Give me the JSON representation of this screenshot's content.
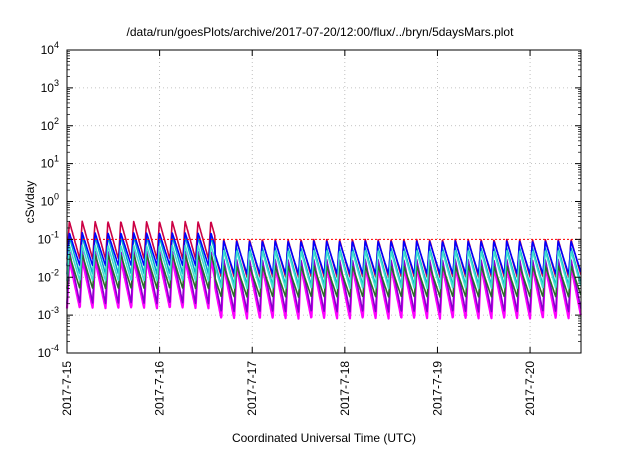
{
  "chart_data": {
    "type": "line",
    "title": "/data/run/goesPlots/archive/2017-07-20/12:00/flux/../bryn/5daysMars.plot",
    "xlabel": "Coordinated Universal Time (UTC)",
    "ylabel": "cSv/day",
    "x_ticks": [
      "2017-7-15",
      "2017-7-16",
      "2017-7-17",
      "2017-7-18",
      "2017-7-19",
      "2017-7-20"
    ],
    "x_range_days": [
      0,
      5.55
    ],
    "y_scale": "log",
    "y_exponent_range": [
      -4,
      4
    ],
    "y_ticks": [
      {
        "base": "10",
        "exp": "4"
      },
      {
        "base": "10",
        "exp": "3"
      },
      {
        "base": "10",
        "exp": "2"
      },
      {
        "base": "10",
        "exp": "1"
      },
      {
        "base": "10",
        "exp": "0"
      },
      {
        "base": "10",
        "exp": "-1"
      },
      {
        "base": "10",
        "exp": "-2"
      },
      {
        "base": "10",
        "exp": "-3"
      },
      {
        "base": "10",
        "exp": "-4"
      }
    ],
    "grid": true,
    "reference_line": {
      "value": 0.1,
      "color": "#ff0000"
    },
    "pattern": {
      "period_days": 0.1389,
      "early_until_day": 1.6,
      "note_colors_are_series": true
    },
    "series": [
      {
        "color": "#ff00ff",
        "peak_early": 0.03,
        "trough_early": 0.0015,
        "peak_late": 0.02,
        "trough_late": 0.0008
      },
      {
        "color": "#cc0044",
        "peak_early": 0.3,
        "trough_early": 0.03,
        "peak_late": 0.1,
        "trough_late": 0.01
      },
      {
        "color": "#8800cc",
        "peak_early": 0.05,
        "trough_early": 0.002,
        "peak_late": 0.03,
        "trough_late": 0.0012
      },
      {
        "color": "#00aacc",
        "peak_early": 0.12,
        "trough_early": 0.012,
        "peak_late": 0.06,
        "trough_late": 0.006
      },
      {
        "color": "#2a6e2a",
        "peak_early": 0.04,
        "trough_early": 0.005,
        "peak_late": 0.02,
        "trough_late": 0.003
      },
      {
        "color": "#0000ff",
        "peak_early": 0.15,
        "trough_early": 0.02,
        "peak_late": 0.09,
        "trough_late": 0.012
      },
      {
        "color": "#40e0d0",
        "peak_early": 0.07,
        "trough_early": 0.008,
        "peak_late": 0.05,
        "trough_late": 0.005
      }
    ]
  }
}
